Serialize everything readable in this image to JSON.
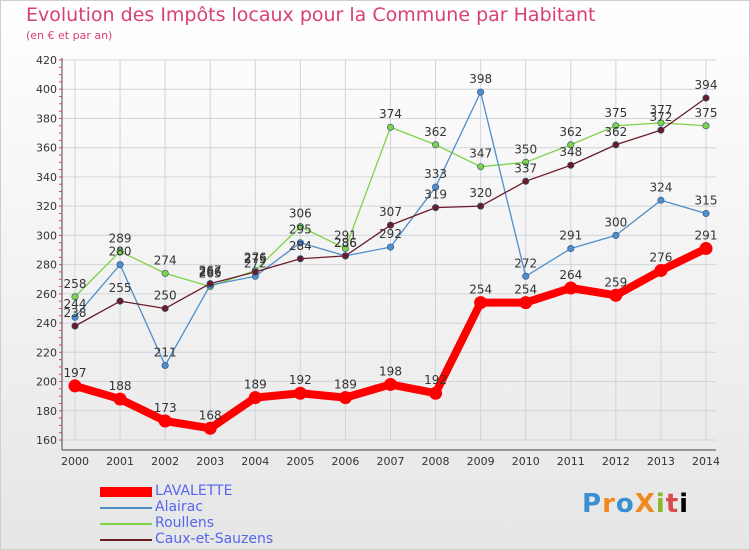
{
  "header": {
    "title": "Evolution des Impôts locaux pour la Commune par Habitant",
    "subtitle": "(en € et par an)"
  },
  "logo_text": "ProXiti",
  "colors": {
    "title": "#d9416e",
    "grid": "#cfd4dc",
    "axis": "#333333"
  },
  "chart_data": {
    "type": "line",
    "title": "Evolution des Impôts locaux pour la Commune par Habitant",
    "subtitle": "(en € et par an)",
    "x": [
      "2000",
      "2001",
      "2002",
      "2003",
      "2004",
      "2005",
      "2006",
      "2007",
      "2008",
      "2009",
      "2010",
      "2011",
      "2012",
      "2013",
      "2014"
    ],
    "ylim": [
      160,
      420
    ],
    "yticks": [
      160,
      180,
      200,
      220,
      240,
      260,
      280,
      300,
      320,
      340,
      360,
      380,
      400,
      420
    ],
    "grid": true,
    "legend_position": "bottom-left",
    "series": [
      {
        "name": "LAVALETTE",
        "color": "#ff0000",
        "values": [
          197,
          188,
          173,
          168,
          189,
          192,
          189,
          198,
          192,
          254,
          254,
          264,
          259,
          276,
          291
        ]
      },
      {
        "name": "Alairac",
        "color": "#4f8ec9",
        "values": [
          244,
          280,
          211,
          266,
          272,
          295,
          286,
          292,
          333,
          398,
          272,
          291,
          300,
          324,
          315
        ]
      },
      {
        "name": "Roullens",
        "color": "#7ed348",
        "values": [
          258,
          289,
          274,
          265,
          276,
          306,
          291,
          374,
          362,
          347,
          350,
          362,
          375,
          377,
          375
        ]
      },
      {
        "name": "Caux-et-Sauzens",
        "color": "#6b1c28",
        "values": [
          238,
          255,
          250,
          267,
          275,
          284,
          286,
          307,
          319,
          320,
          337,
          348,
          362,
          372,
          394
        ]
      }
    ],
    "point_labels": [
      [
        "197",
        "188",
        "173",
        "168",
        "189",
        "192",
        "189",
        "198",
        "192",
        "254",
        "254",
        "264",
        "259",
        "276",
        "291"
      ],
      [
        "244",
        "280",
        "211",
        "266",
        "272",
        "295",
        "286",
        "292",
        "333",
        "398",
        "272",
        "291",
        "300",
        "324",
        "315"
      ],
      [
        "258",
        "289",
        "274",
        "265",
        "276",
        "306",
        "291",
        "374",
        "362",
        "347",
        "350",
        "362",
        "375",
        "377",
        "375"
      ],
      [
        "238",
        "255",
        "250",
        "267",
        "275",
        "284",
        "286",
        "307",
        "319",
        "320",
        "337",
        "348",
        "362",
        "372",
        "394"
      ]
    ]
  }
}
